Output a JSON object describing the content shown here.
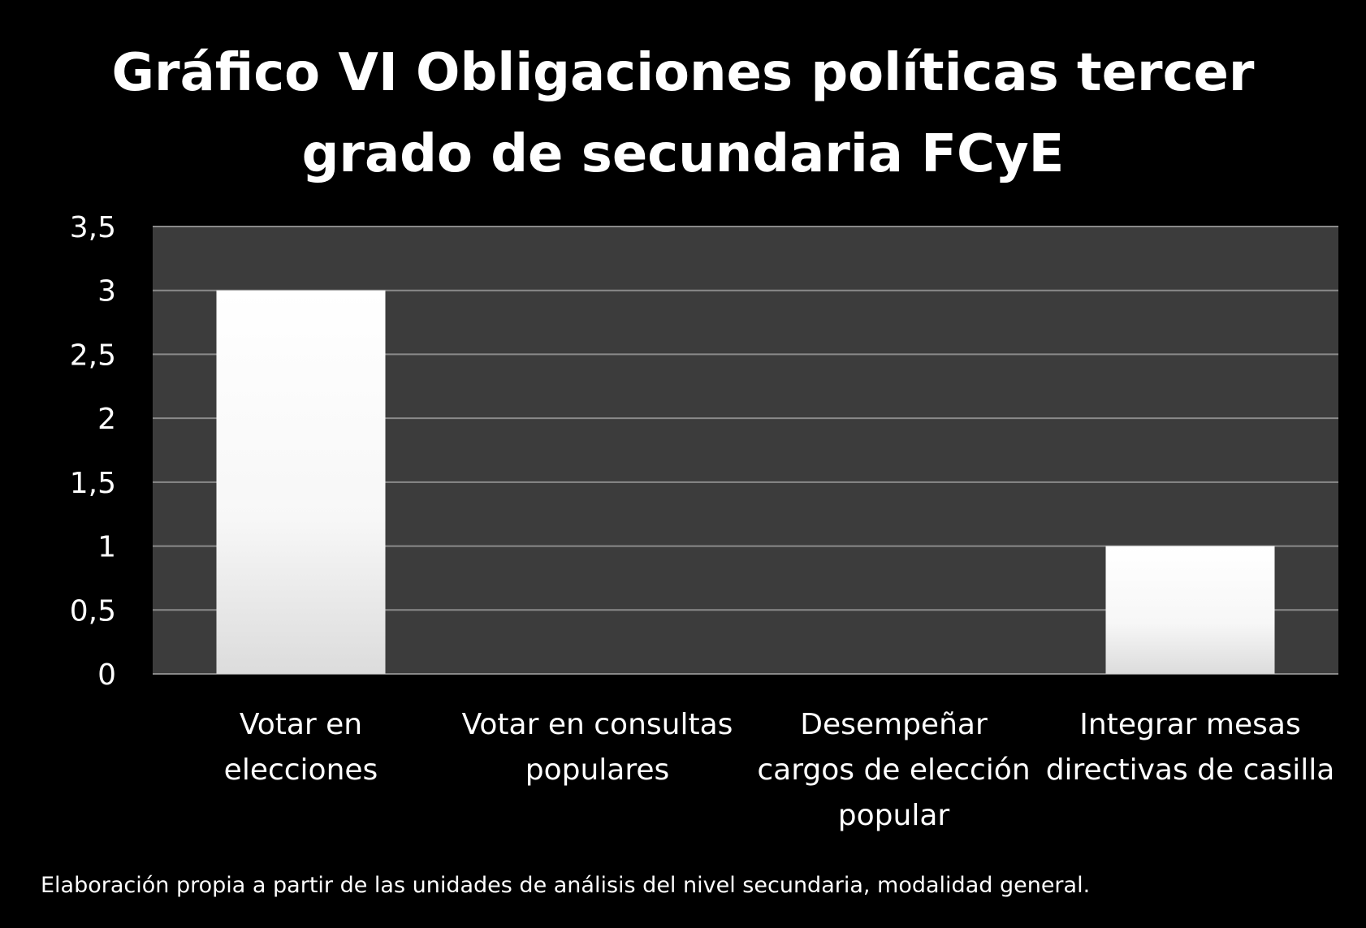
{
  "chart_data": {
    "type": "bar",
    "title": "Gráfico VI Obligaciones políticas tercer grado de secundaria FCyE",
    "title_lines": [
      "Gráfico VI Obligaciones políticas tercer",
      "grado de secundaria FCyE"
    ],
    "categories": [
      "Votar en elecciones",
      "Votar en consultas populares",
      "Desempeñar cargos de elección popular",
      "Integrar mesas directivas de casilla"
    ],
    "category_lines": [
      [
        "Votar en",
        "elecciones"
      ],
      [
        "Votar en consultas",
        "populares"
      ],
      [
        "Desempeñar",
        "cargos de elección",
        "popular"
      ],
      [
        "Integrar mesas",
        "directivas de casilla"
      ]
    ],
    "values": [
      3,
      0,
      0,
      1
    ],
    "ylim": [
      0,
      3.5
    ],
    "yticks": [
      0,
      0.5,
      1,
      1.5,
      2,
      2.5,
      3,
      3.5
    ],
    "ytick_labels": [
      "0",
      "0,5",
      "1",
      "1,5",
      "2",
      "2,5",
      "3",
      "3,5"
    ],
    "xlabel": "",
    "ylabel": "",
    "grid": true,
    "legend": "none",
    "colors": {
      "background": "#000000",
      "plot_area": "#3c3c3c",
      "bar": "#ffffff",
      "grid": "#8a8a8a"
    }
  },
  "source_note": "Elaboración propia a partir de las unidades de análisis del nivel secundaria, modalidad general."
}
